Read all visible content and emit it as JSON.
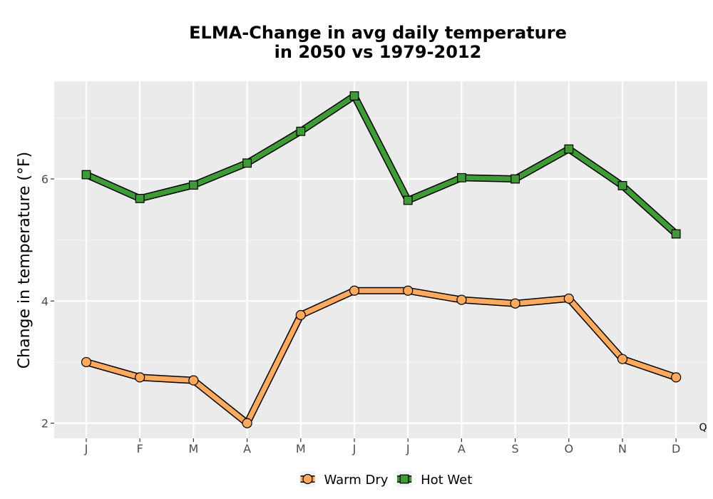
{
  "chart_data": {
    "type": "line",
    "title_line1": "ELMA-Change in avg daily temperature",
    "title_line2": "in 2050 vs 1979-2012",
    "xlabel": "",
    "ylabel": "Change in temperature (°F)",
    "categories": [
      "J",
      "F",
      "M",
      "A",
      "M",
      "J",
      "J",
      "A",
      "S",
      "O",
      "N",
      "D"
    ],
    "ylim": [
      1.75,
      7.6
    ],
    "yticks": [
      2,
      4,
      6
    ],
    "grid": true,
    "legend": "bottom",
    "series": [
      {
        "name": "Warm Dry",
        "color": "#fdaa5f",
        "marker": "circle",
        "values": [
          3.0,
          2.75,
          2.7,
          2.0,
          3.77,
          4.17,
          4.17,
          4.02,
          3.96,
          4.04,
          3.05,
          2.75
        ]
      },
      {
        "name": "Hot Wet",
        "color": "#3e9b35",
        "marker": "square",
        "values": [
          6.07,
          5.68,
          5.9,
          6.26,
          6.78,
          7.36,
          5.65,
          6.02,
          6.0,
          6.49,
          5.89,
          5.1
        ]
      }
    ],
    "corner_label": "Q"
  }
}
